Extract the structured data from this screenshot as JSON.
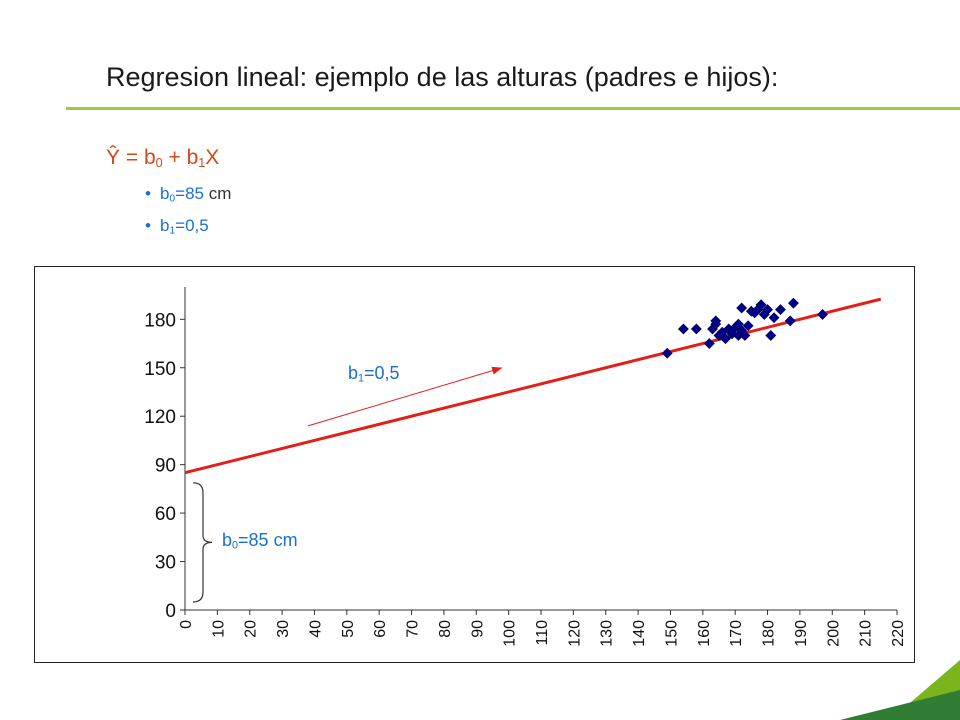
{
  "slide": {
    "title": "Regresion lineal: ejemplo de las alturas (padres e hijos):",
    "formula": {
      "lhs": "Ŷ = b",
      "sub0": "0",
      "mid": " + b",
      "sub1": "1",
      "end": "X"
    },
    "bullets": [
      {
        "sym": "b",
        "sub": "0",
        "val": "=85",
        "unit": " cm"
      },
      {
        "sym": "b",
        "sub": "1",
        "val": "=0,5",
        "unit": ""
      }
    ]
  },
  "colors": {
    "accent_line": "#9ccc3c",
    "regression": "#e0201a",
    "points": "#00008b",
    "label": "#1a6fd6",
    "formula": "#d24a1a"
  },
  "chart_data": {
    "type": "scatter",
    "title": "",
    "xlabel": "",
    "ylabel": "",
    "xlim": [
      0,
      220
    ],
    "ylim": [
      0,
      180
    ],
    "xticks": [
      0,
      10,
      20,
      30,
      40,
      50,
      60,
      70,
      80,
      90,
      100,
      110,
      120,
      130,
      140,
      150,
      160,
      170,
      180,
      190,
      200,
      210,
      220
    ],
    "yticks": [
      0,
      30,
      60,
      90,
      120,
      150,
      180
    ],
    "grid": false,
    "points": [
      [
        149,
        159
      ],
      [
        154,
        174
      ],
      [
        158,
        174
      ],
      [
        162,
        165
      ],
      [
        163,
        174
      ],
      [
        164,
        177
      ],
      [
        164,
        179
      ],
      [
        165,
        170
      ],
      [
        166,
        172
      ],
      [
        167,
        168
      ],
      [
        168,
        174
      ],
      [
        169,
        171
      ],
      [
        170,
        175
      ],
      [
        171,
        170
      ],
      [
        171,
        177
      ],
      [
        172,
        187
      ],
      [
        172,
        173
      ],
      [
        173,
        170
      ],
      [
        174,
        176
      ],
      [
        175,
        185
      ],
      [
        176,
        184
      ],
      [
        177,
        186
      ],
      [
        178,
        189
      ],
      [
        179,
        183
      ],
      [
        180,
        186
      ],
      [
        181,
        170
      ],
      [
        182,
        181
      ],
      [
        184,
        186
      ],
      [
        187,
        179
      ],
      [
        188,
        190
      ],
      [
        197,
        183
      ]
    ],
    "regression": {
      "intercept": 85,
      "slope": 0.5,
      "x_range": [
        0,
        215
      ]
    },
    "annotations": {
      "slope": {
        "sym": "b",
        "sub": "1",
        "text": "=0,5",
        "arrow_from": [
          38,
          114
        ],
        "arrow_to": [
          98,
          150
        ]
      },
      "intercept": {
        "sym": "b",
        "sub": "0",
        "text": "=85 cm",
        "brace_range": [
          0,
          80
        ]
      }
    }
  }
}
